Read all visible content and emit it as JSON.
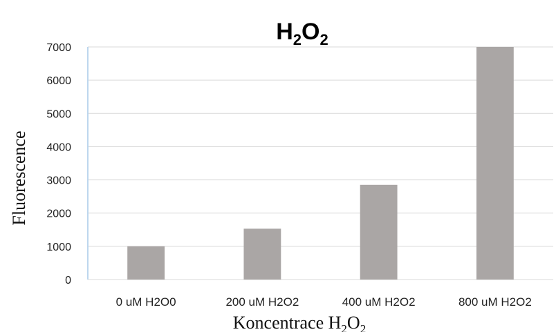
{
  "chart_data": {
    "type": "bar",
    "title": {
      "main": "H",
      "sub1": "2",
      "mid": "O",
      "sub2": "2"
    },
    "categories": [
      "0 uM H2O0",
      "200 uM H2O2",
      "400 uM H2O2",
      "800 uM H2O2"
    ],
    "values": [
      1000,
      1530,
      2850,
      7000
    ],
    "ylabel": "Fluorescence",
    "xlabel": {
      "text": "Koncentrace H",
      "sub1": "2",
      "mid": "O",
      "sub2": "2"
    },
    "ylim": [
      0,
      7000
    ],
    "yticks": [
      "0",
      "1000",
      "2000",
      "3000",
      "4000",
      "5000",
      "6000",
      "7000"
    ],
    "grid": true,
    "bar_color": "#aaa6a5",
    "grid_color": "#d9d9d9",
    "axis_color": "#bdd7ee"
  }
}
